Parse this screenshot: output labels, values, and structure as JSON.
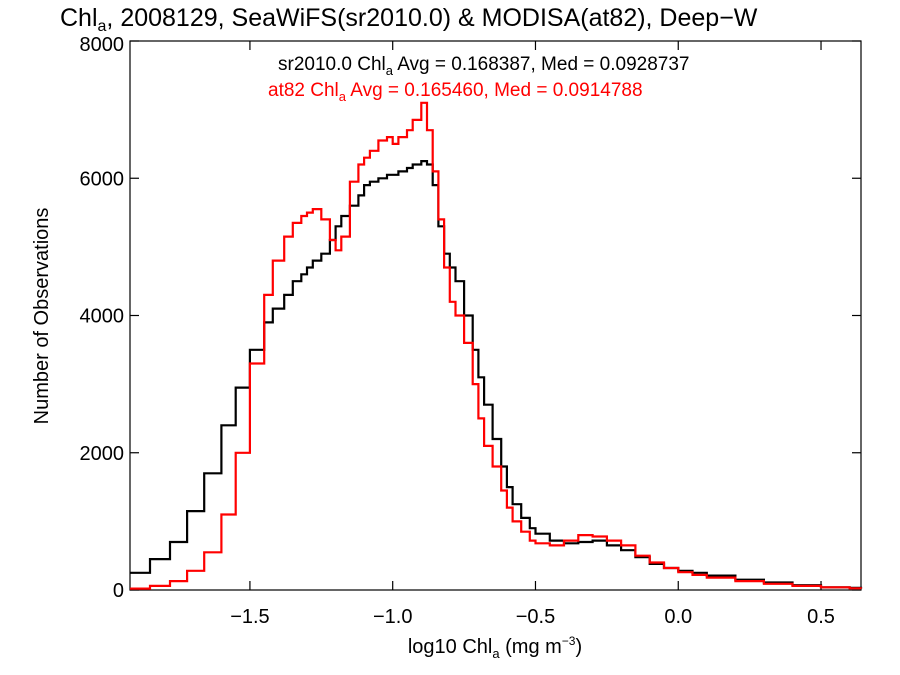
{
  "chart_data": {
    "type": "line",
    "title": {
      "pre": "Chl",
      "sub": "a",
      "post": ", 2008129, SeaWiFS(sr2010.0) & MODISA(at82), Deep−W"
    },
    "xlabel": {
      "pre": "log10 Chl",
      "sub": "a",
      "mid": " (mg m",
      "sup": "−3",
      "post": ")"
    },
    "ylabel": "Number of Observations",
    "xlim": [
      -1.92,
      0.64
    ],
    "ylim": [
      0,
      8000
    ],
    "x_ticks": [
      -1.5,
      -1.0,
      -0.5,
      0.0,
      0.5
    ],
    "x_tick_labels": [
      "−1.5",
      "−1.0",
      "−0.5",
      "0.0",
      "0.5"
    ],
    "y_ticks": [
      0,
      2000,
      4000,
      6000,
      8000
    ],
    "y_tick_labels": [
      "0",
      "2000",
      "4000",
      "6000",
      "8000"
    ],
    "grid": false,
    "legend_position": "top-right",
    "step": true,
    "x": [
      -1.92,
      -1.85,
      -1.78,
      -1.72,
      -1.66,
      -1.6,
      -1.55,
      -1.5,
      -1.45,
      -1.42,
      -1.38,
      -1.35,
      -1.32,
      -1.3,
      -1.28,
      -1.25,
      -1.22,
      -1.2,
      -1.18,
      -1.15,
      -1.12,
      -1.1,
      -1.08,
      -1.05,
      -1.02,
      -1.0,
      -0.98,
      -0.95,
      -0.93,
      -0.9,
      -0.88,
      -0.86,
      -0.84,
      -0.82,
      -0.8,
      -0.78,
      -0.75,
      -0.72,
      -0.7,
      -0.68,
      -0.65,
      -0.62,
      -0.6,
      -0.58,
      -0.55,
      -0.52,
      -0.5,
      -0.45,
      -0.4,
      -0.35,
      -0.3,
      -0.25,
      -0.2,
      -0.15,
      -0.1,
      -0.05,
      0.0,
      0.05,
      0.1,
      0.2,
      0.3,
      0.4,
      0.5,
      0.6,
      0.64
    ],
    "series": [
      {
        "name": "sr2010.0",
        "color": "#000000",
        "label": {
          "pre": "sr2010.0 Chl",
          "sub": "a",
          "post": " Avg = 0.168387, Med = 0.0928737"
        },
        "values": [
          250,
          450,
          700,
          1150,
          1700,
          2400,
          2950,
          3500,
          3900,
          4100,
          4300,
          4500,
          4600,
          4700,
          4800,
          4900,
          5100,
          5300,
          5450,
          5600,
          5750,
          5900,
          5950,
          6000,
          6050,
          6050,
          6100,
          6150,
          6200,
          6250,
          6200,
          5900,
          5300,
          4900,
          4700,
          4500,
          4000,
          3500,
          3100,
          2700,
          2200,
          1800,
          1500,
          1250,
          1050,
          900,
          820,
          720,
          680,
          700,
          720,
          650,
          580,
          480,
          380,
          320,
          280,
          250,
          210,
          150,
          110,
          70,
          40,
          30,
          20
        ]
      },
      {
        "name": "at82",
        "color": "#ff0000",
        "label": {
          "pre": "at82 Chl",
          "sub": "a",
          "post": " Avg = 0.165460, Med = 0.0914788"
        },
        "values": [
          20,
          60,
          130,
          280,
          550,
          1100,
          2000,
          3300,
          4300,
          4800,
          5150,
          5350,
          5450,
          5500,
          5550,
          5400,
          5100,
          4950,
          5150,
          5950,
          6200,
          6300,
          6400,
          6550,
          6600,
          6500,
          6600,
          6700,
          6850,
          7100,
          6700,
          6100,
          5400,
          4700,
          4200,
          4000,
          3600,
          3000,
          2500,
          2100,
          1800,
          1450,
          1200,
          1000,
          850,
          720,
          680,
          650,
          720,
          800,
          780,
          720,
          650,
          500,
          400,
          320,
          260,
          220,
          180,
          130,
          90,
          60,
          40,
          25,
          20
        ]
      }
    ]
  }
}
